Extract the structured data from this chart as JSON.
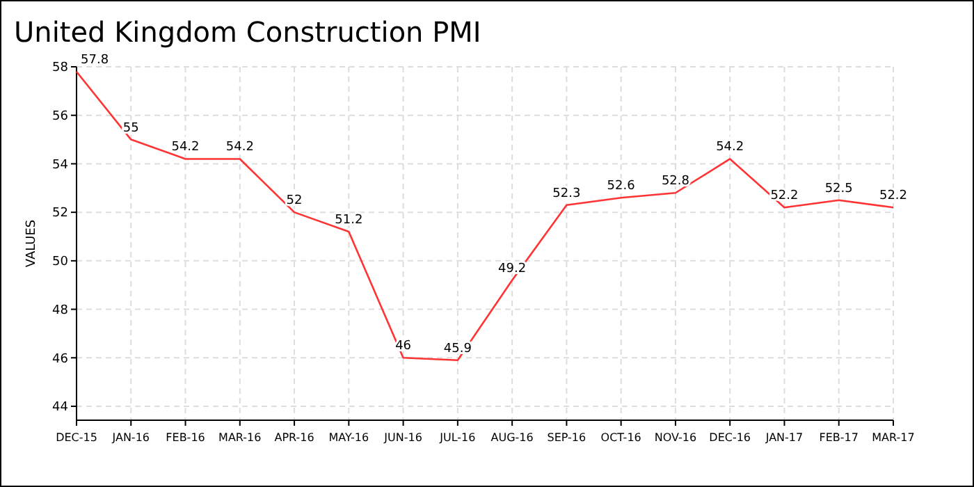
{
  "chart_data": {
    "type": "line",
    "title": "United Kingdom Construction PMI",
    "ylabel": "VALUES",
    "categories": [
      "DEC-15",
      "JAN-16",
      "FEB-16",
      "MAR-16",
      "APR-16",
      "MAY-16",
      "JUN-16",
      "JUL-16",
      "AUG-16",
      "SEP-16",
      "OCT-16",
      "NOV-16",
      "DEC-16",
      "JAN-17",
      "FEB-17",
      "MAR-17"
    ],
    "series": [
      {
        "color": "#ff3333",
        "values": [
          57.8,
          55,
          54.2,
          54.2,
          52,
          51.2,
          46,
          45.9,
          49.2,
          52.3,
          52.6,
          52.8,
          54.2,
          52.2,
          52.5,
          52.2
        ]
      }
    ],
    "ylim": [
      44,
      58
    ],
    "yticks": [
      44,
      46,
      48,
      50,
      52,
      54,
      56,
      58
    ],
    "grid": true,
    "data_labels": true,
    "marker": "none",
    "line_style": "solid"
  }
}
